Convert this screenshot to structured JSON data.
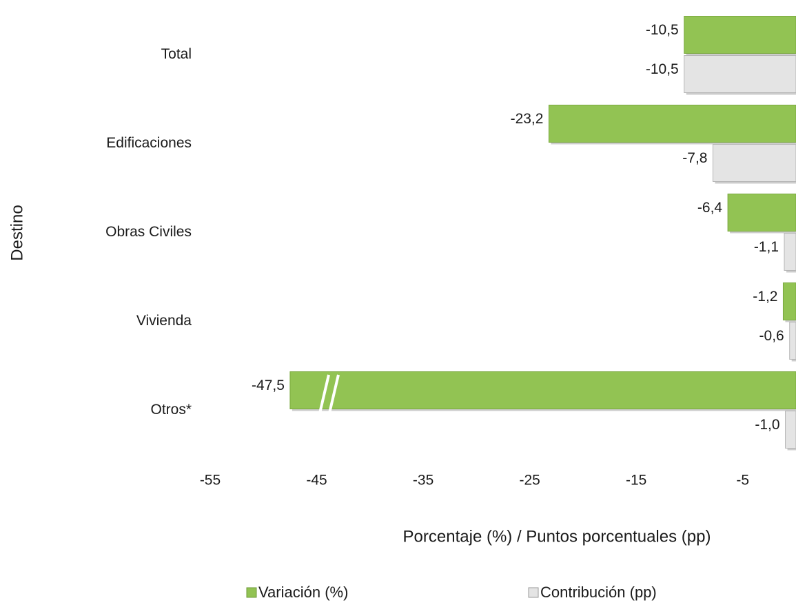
{
  "chart_data": {
    "type": "bar",
    "orientation": "horizontal",
    "categories": [
      "Total",
      "Edificaciones",
      "Obras Civiles",
      "Vivienda",
      "Otros*"
    ],
    "series": [
      {
        "name": "Variación (%)",
        "color": "#92c353",
        "values": [
          -10.5,
          -23.2,
          -6.4,
          -1.2,
          -47.5
        ],
        "value_labels": [
          "-10,5",
          "-23,2",
          "-6,4",
          "-1,2",
          "-47,5"
        ]
      },
      {
        "name": "Contribución (pp)",
        "color": "#e4e4e4",
        "values": [
          -10.5,
          -7.8,
          -1.1,
          -0.6,
          -1.0
        ],
        "value_labels": [
          "-10,5",
          "-7,8",
          "-1,1",
          "-0,6",
          "-1,0"
        ]
      }
    ],
    "xlim": [
      -55,
      0
    ],
    "xticks": [
      -55,
      -45,
      -35,
      -25,
      -15,
      -5
    ],
    "x_label": "Porcentaje (%) / Puntos porcentuales (pp)",
    "y_label": "Destino",
    "legend": "bottom",
    "grid": false
  }
}
